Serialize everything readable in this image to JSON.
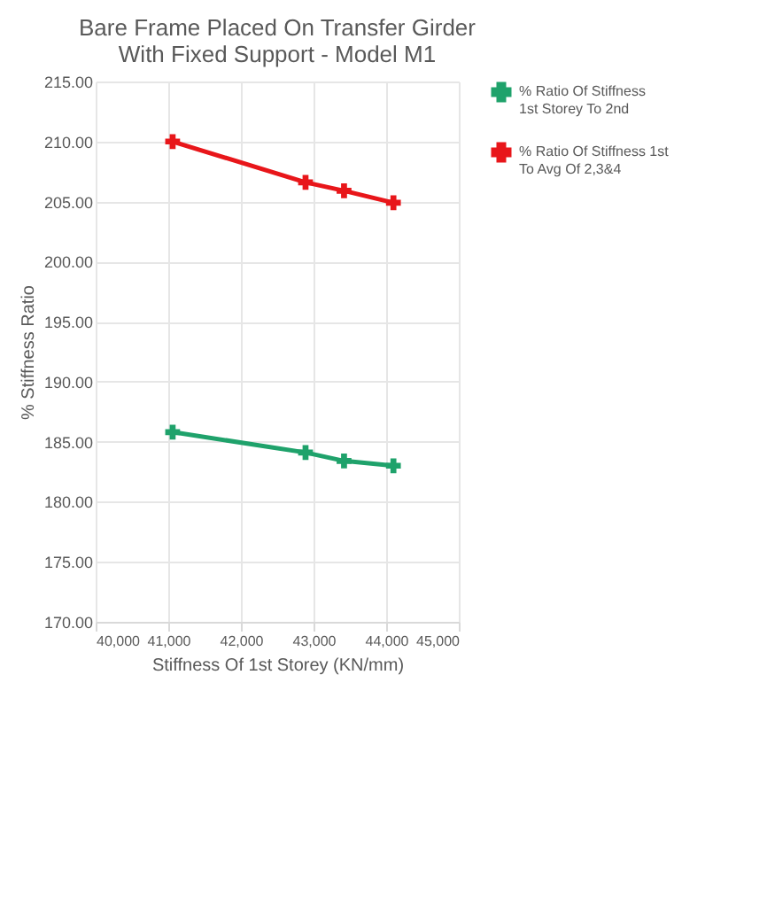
{
  "chart_data": {
    "type": "line",
    "title": "Bare Frame Placed On Transfer Girder With Fixed Support - Model M1",
    "xlabel": "Stiffness Of 1st Storey (KN/mm)",
    "ylabel": "% Stiffness Ratio",
    "x": [
      41060,
      42890,
      43420,
      44100
    ],
    "series": [
      {
        "name": "% Ratio Of Stiffness 1st Storey To 2nd",
        "color": "#1fa26b",
        "values": [
          185.8,
          184.1,
          183.4,
          183.0
        ]
      },
      {
        "name": "% Ratio Of Stiffness 1st To Avg Of 2,3&4",
        "color": "#e8161a",
        "values": [
          210.0,
          206.6,
          205.9,
          204.9
        ]
      }
    ],
    "xlim": [
      40000,
      45000
    ],
    "xticks": [
      {
        "value": 40000,
        "label": "40,000"
      },
      {
        "value": 41000,
        "label": "41,000"
      },
      {
        "value": 42000,
        "label": "42,000"
      },
      {
        "value": 43000,
        "label": "43,000"
      },
      {
        "value": 44000,
        "label": "44,000"
      },
      {
        "value": 45000,
        "label": "45,000"
      }
    ],
    "ylim": [
      170,
      215
    ],
    "yticks": [
      {
        "value": 170,
        "label": "170.00"
      },
      {
        "value": 175,
        "label": "175.00"
      },
      {
        "value": 180,
        "label": "180.00"
      },
      {
        "value": 185,
        "label": "185.00"
      },
      {
        "value": 190,
        "label": "190.00"
      },
      {
        "value": 195,
        "label": "195.00"
      },
      {
        "value": 200,
        "label": "200.00"
      },
      {
        "value": 205,
        "label": "205.00"
      },
      {
        "value": 210,
        "label": "210.00"
      },
      {
        "value": 215,
        "label": "215.00"
      }
    ],
    "grid": true,
    "legend": "right",
    "marker": "cross",
    "line_style": "solid"
  }
}
